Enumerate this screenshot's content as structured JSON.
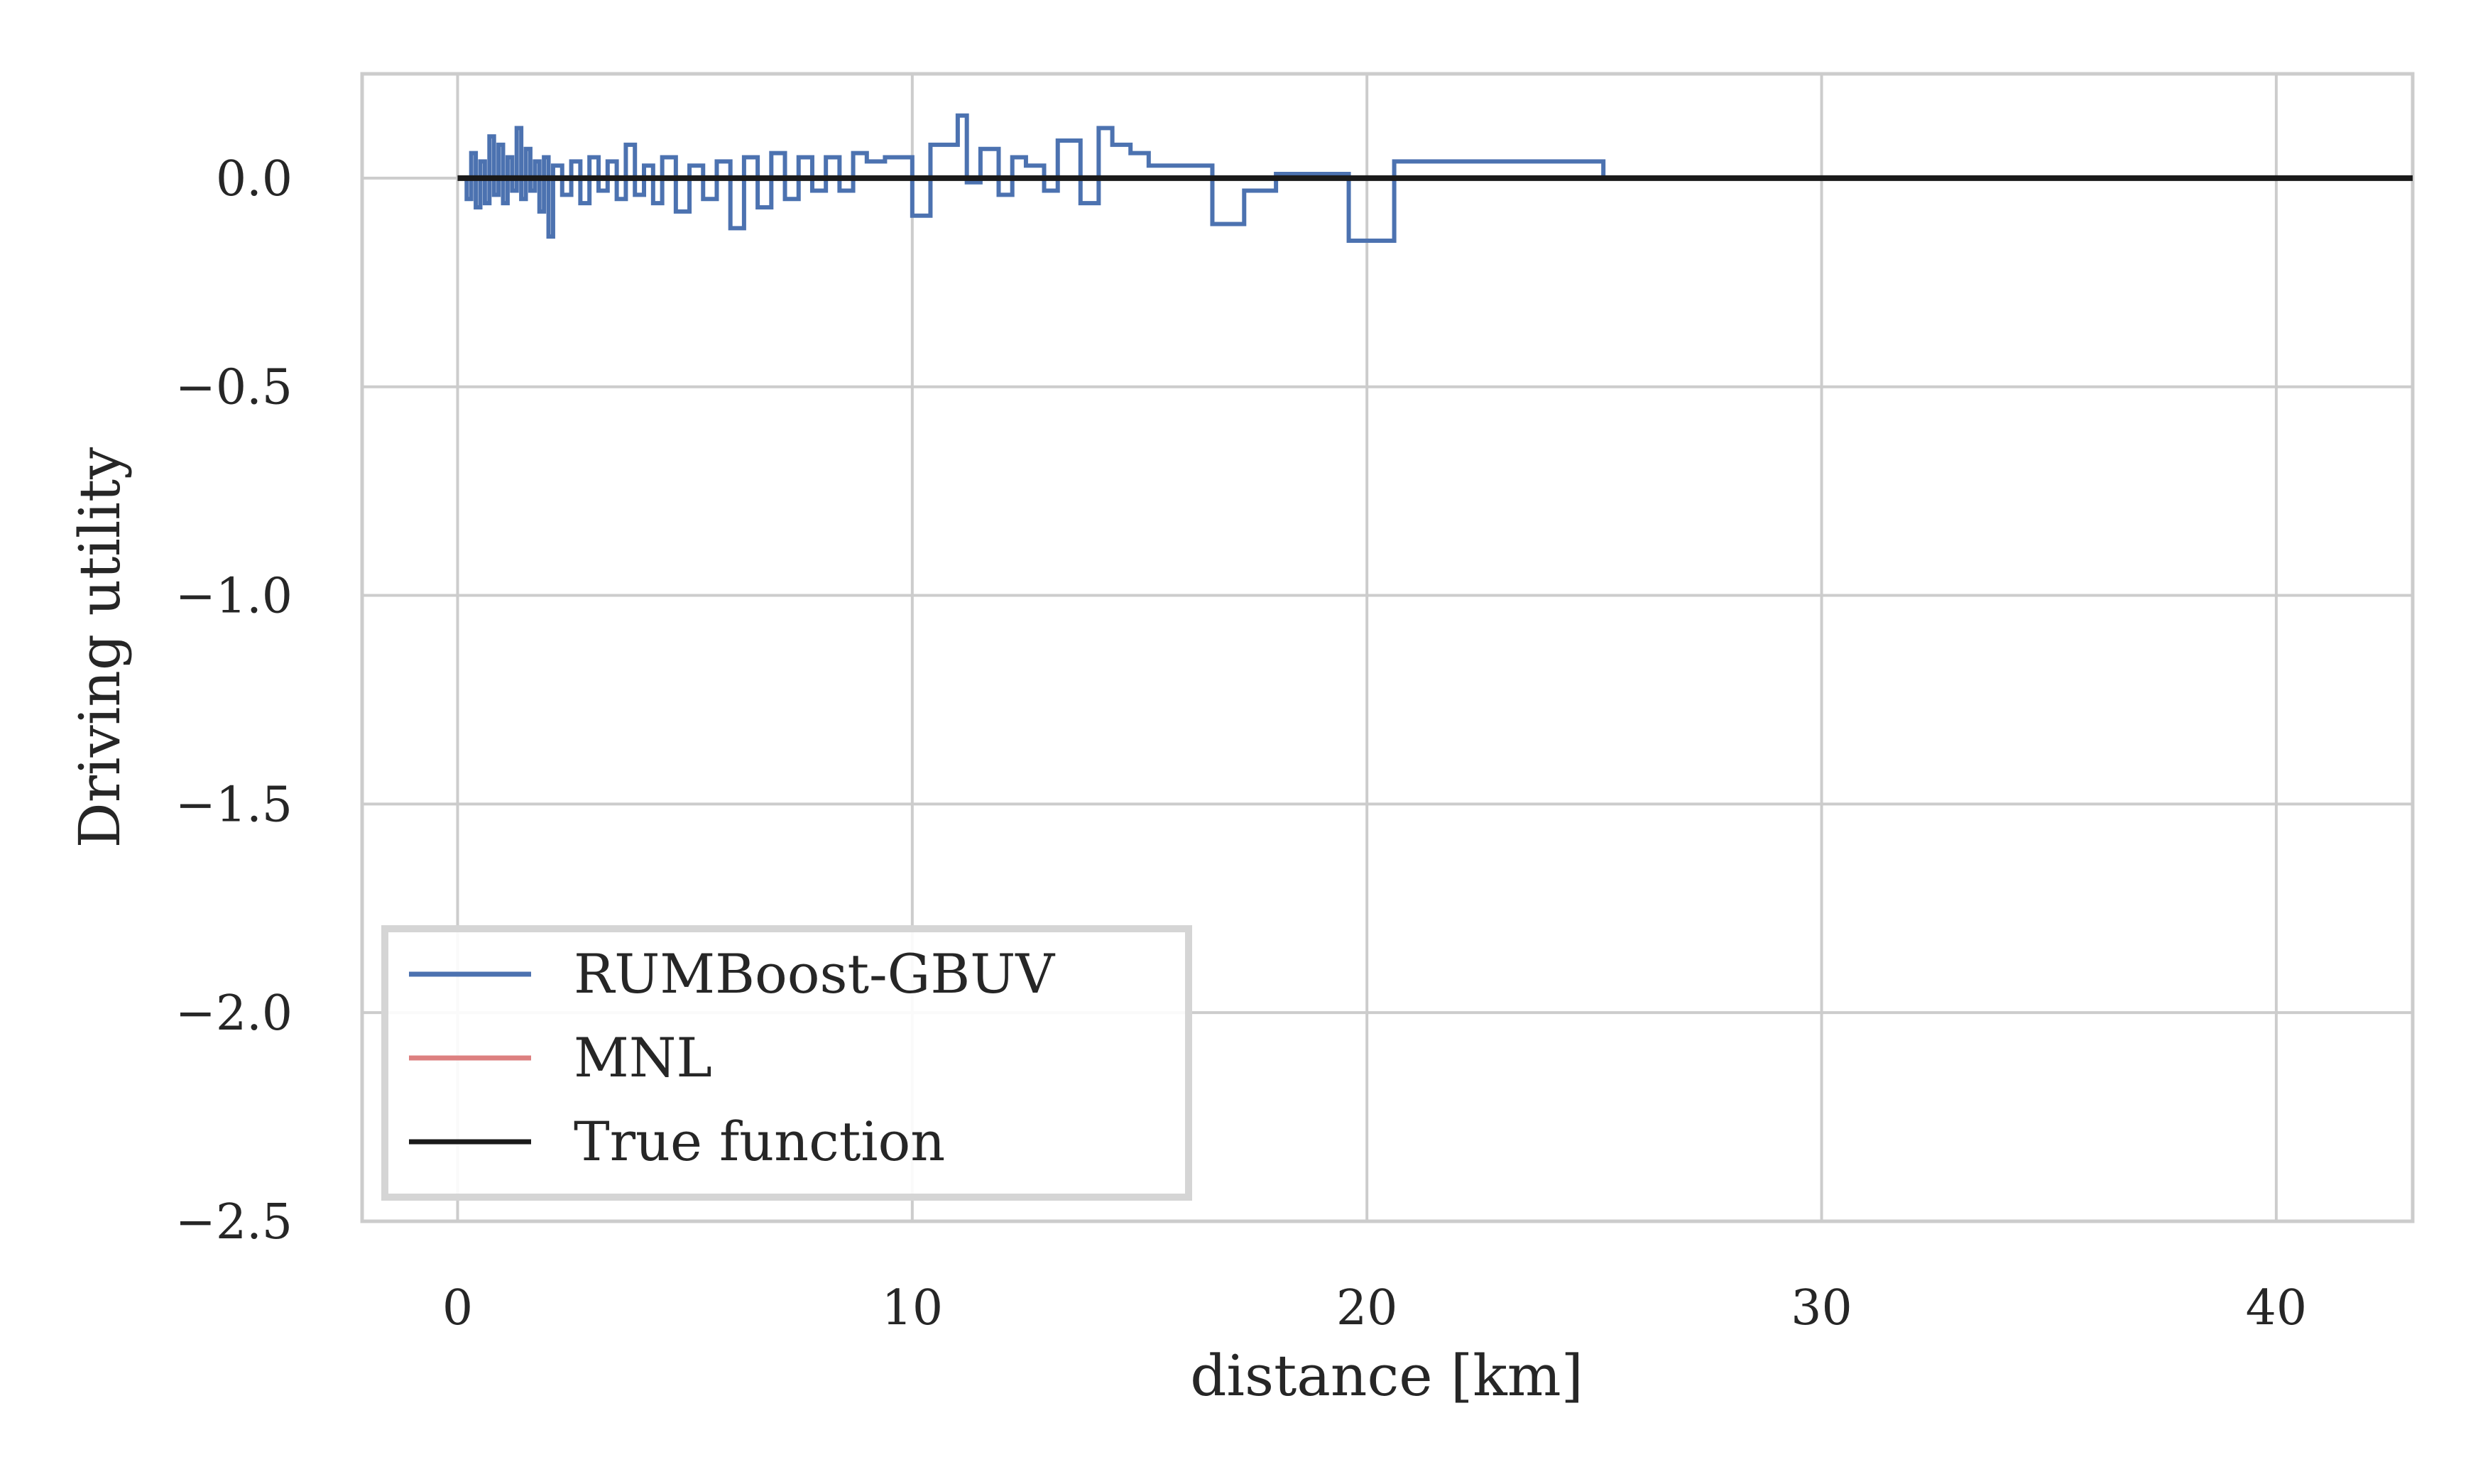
{
  "chart_data": {
    "type": "line",
    "title": "",
    "xlabel": "distance [km]",
    "ylabel": "Driving utility",
    "xlim": [
      -2.1,
      43
    ],
    "ylim": [
      -2.5,
      0.25
    ],
    "xticks": [
      0,
      10,
      20,
      30,
      40
    ],
    "yticks": [
      0.0,
      -0.5,
      -1.0,
      -1.5,
      -2.0,
      -2.5
    ],
    "xtick_labels": [
      "0",
      "10",
      "20",
      "30",
      "40"
    ],
    "ytick_labels": [
      "0.0",
      "−0.5",
      "−1.0",
      "−1.5",
      "−2.0",
      "−2.5"
    ],
    "grid": true,
    "legend_position": "lower-left",
    "series": [
      {
        "name": "RUMBoost-GBUV",
        "color": "#4c72b0",
        "step": true,
        "x": [
          0.1,
          0.2,
          0.3,
          0.4,
          0.5,
          0.6,
          0.7,
          0.8,
          0.9,
          1.0,
          1.1,
          1.2,
          1.3,
          1.4,
          1.5,
          1.6,
          1.7,
          1.8,
          1.9,
          2.0,
          2.1,
          2.3,
          2.5,
          2.7,
          2.9,
          3.1,
          3.3,
          3.5,
          3.7,
          3.9,
          4.1,
          4.3,
          4.5,
          4.8,
          5.1,
          5.4,
          5.7,
          6.0,
          6.3,
          6.6,
          6.9,
          7.2,
          7.5,
          7.8,
          8.1,
          8.4,
          8.7,
          9.0,
          9.4,
          10.0,
          10.4,
          11.0,
          11.2,
          11.5,
          11.9,
          12.2,
          12.5,
          12.9,
          13.2,
          13.7,
          14.1,
          14.4,
          14.8,
          15.2,
          16.0,
          16.6,
          17.3,
          18.0,
          19.6,
          20.6,
          21.7,
          25.2,
          43.0
        ],
        "y": [
          0.0,
          -0.05,
          0.06,
          -0.07,
          0.04,
          -0.06,
          0.1,
          -0.04,
          0.08,
          -0.06,
          0.05,
          -0.03,
          0.12,
          -0.05,
          0.07,
          -0.03,
          0.04,
          -0.08,
          0.05,
          -0.14,
          0.03,
          -0.04,
          0.04,
          -0.06,
          0.05,
          -0.03,
          0.04,
          -0.05,
          0.08,
          -0.04,
          0.03,
          -0.06,
          0.05,
          -0.08,
          0.03,
          -0.05,
          0.04,
          -0.12,
          0.05,
          -0.07,
          0.06,
          -0.05,
          0.05,
          -0.03,
          0.05,
          -0.03,
          0.06,
          0.04,
          0.05,
          -0.09,
          0.08,
          0.15,
          -0.01,
          0.07,
          -0.04,
          0.05,
          0.03,
          -0.03,
          0.09,
          -0.06,
          0.12,
          0.08,
          0.06,
          0.03,
          0.03,
          -0.11,
          -0.03,
          0.01,
          -0.15,
          0.04,
          0.04,
          0.0,
          0.0
        ]
      },
      {
        "name": "MNL",
        "color": "#dd8452",
        "x": [],
        "y": []
      },
      {
        "name": "True function",
        "color": "#1a1a1a",
        "x": [
          0,
          43
        ],
        "y": [
          0.0,
          0.0
        ]
      }
    ]
  }
}
